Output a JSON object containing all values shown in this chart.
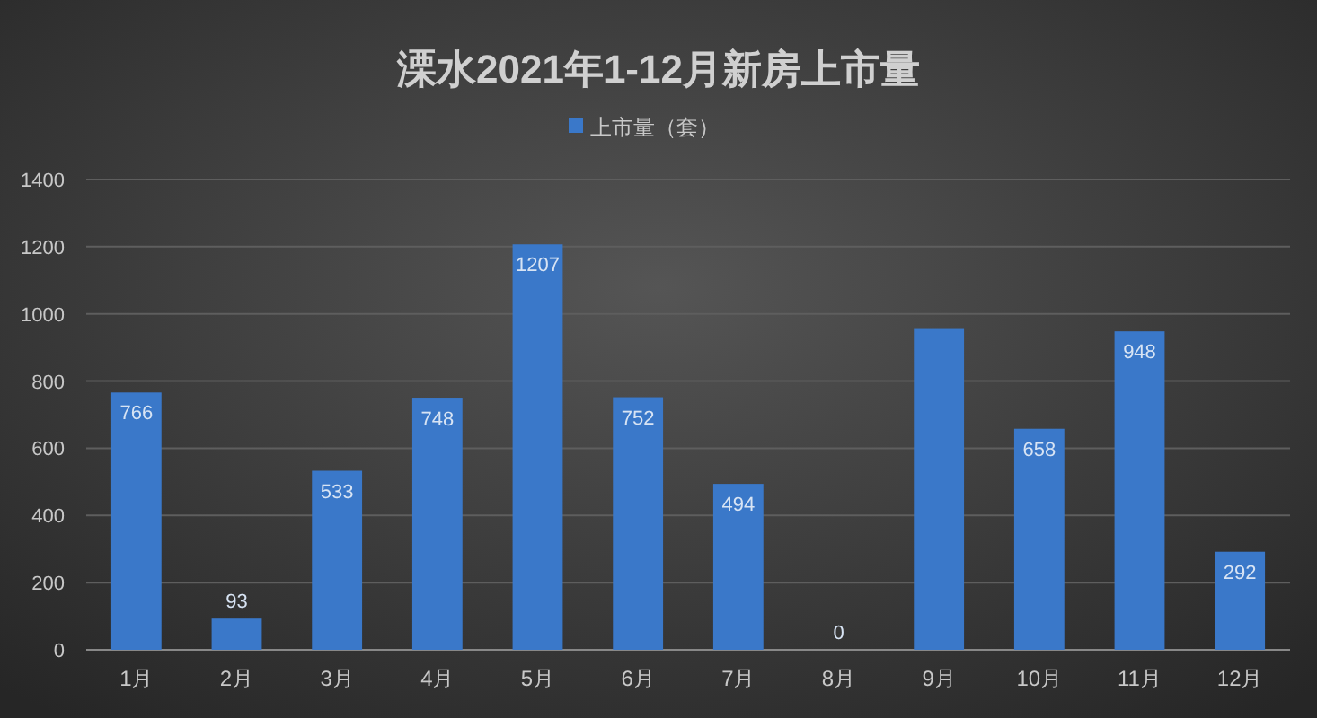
{
  "chart_data": {
    "type": "bar",
    "title": "溧水2021年1-12月新房上市量",
    "categories": [
      "1月",
      "2月",
      "3月",
      "4月",
      "5月",
      "6月",
      "7月",
      "8月",
      "9月",
      "10月",
      "11月",
      "12月"
    ],
    "series": [
      {
        "name": "上市量（套）",
        "color": "#3a78c9",
        "values": [
          766,
          93,
          533,
          748,
          1207,
          752,
          494,
          0,
          955,
          658,
          948,
          292
        ]
      }
    ],
    "value_labels": [
      "766",
      "93",
      "533",
      "748",
      "1207",
      "752",
      "494",
      "0",
      null,
      "658",
      "948",
      "292"
    ],
    "ylim": [
      0,
      1400
    ],
    "yticks": [
      0,
      200,
      400,
      600,
      800,
      1000,
      1200,
      1400
    ],
    "grid": "y",
    "legend": "top"
  }
}
